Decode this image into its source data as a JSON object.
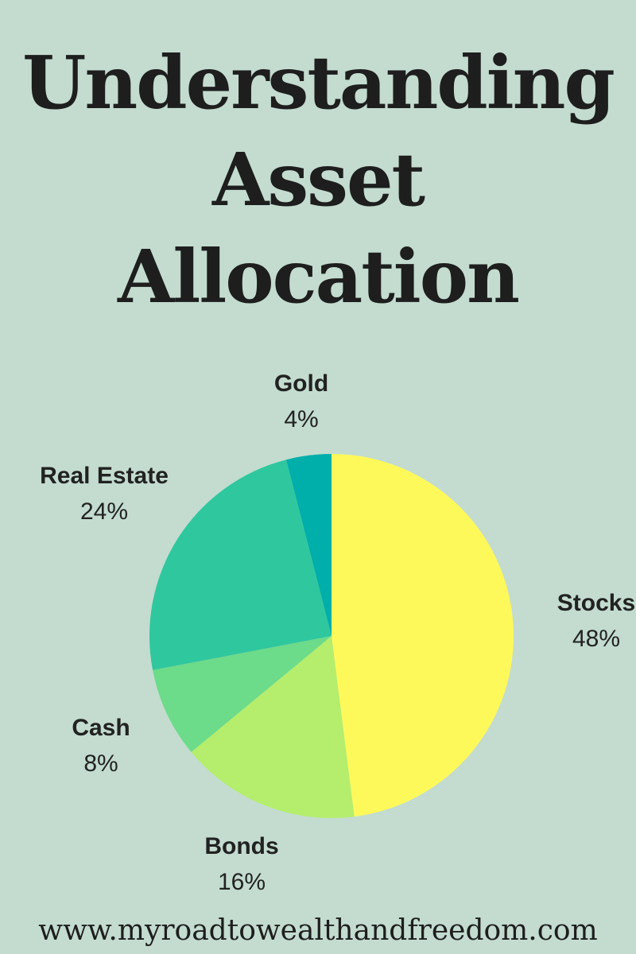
{
  "title_lines": [
    "Understanding",
    "Asset",
    "Allocation"
  ],
  "website": "www.myroadtowealthandfreedom.com",
  "chart_data": {
    "type": "pie",
    "title": "Understanding Asset Allocation",
    "start": "top",
    "direction": "clockwise",
    "slices": [
      {
        "label": "Stocks",
        "value": 48,
        "display": "48%",
        "color": "#fef95a"
      },
      {
        "label": "Bonds",
        "value": 16,
        "display": "16%",
        "color": "#b4ee6c"
      },
      {
        "label": "Cash",
        "value": 8,
        "display": "8%",
        "color": "#6cdb8a"
      },
      {
        "label": "Real Estate",
        "value": 24,
        "display": "24%",
        "color": "#2fc79e"
      },
      {
        "label": "Gold",
        "value": 4,
        "display": "4%",
        "color": "#00aeaa"
      }
    ]
  },
  "colors": {
    "background": "#c3dccf",
    "text": "#222222"
  }
}
